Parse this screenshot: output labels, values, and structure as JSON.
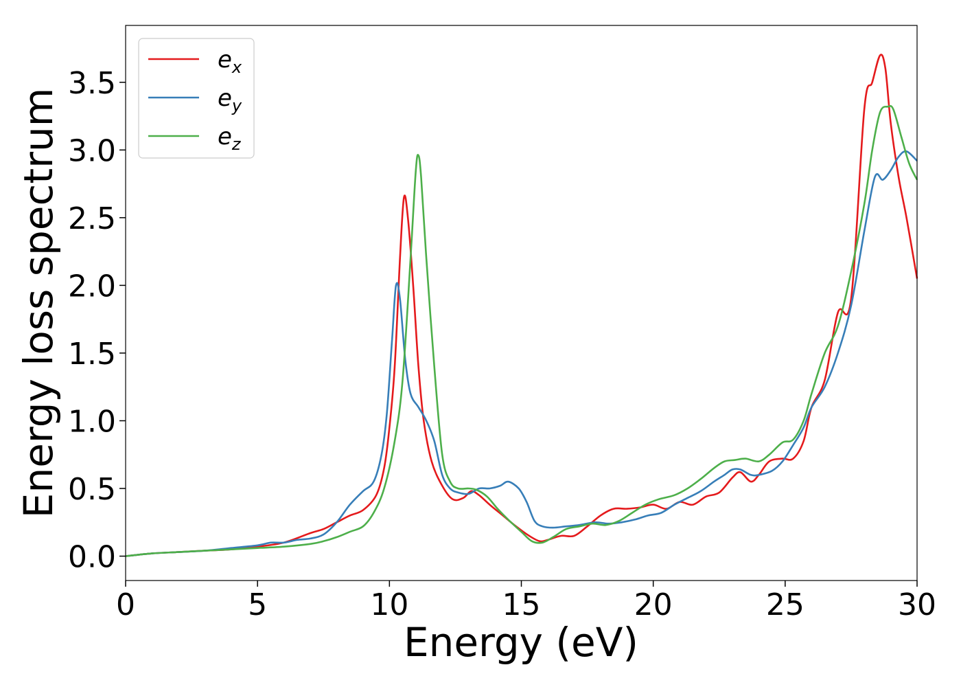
{
  "chart_data": {
    "type": "line",
    "title": "",
    "xlabel": "Energy (eV)",
    "ylabel": "Energy loss spectrum",
    "xlim": [
      0,
      30
    ],
    "ylim": [
      -0.18,
      3.92
    ],
    "xticks": [
      "0",
      "5",
      "10",
      "15",
      "20",
      "25",
      "30"
    ],
    "yticks": [
      "0.0",
      "0.5",
      "1.0",
      "1.5",
      "2.0",
      "2.5",
      "3.0",
      "3.5"
    ],
    "grid": false,
    "legend_position": "top-left",
    "series": [
      {
        "name": "e",
        "subscript": "x",
        "color": "#e41a1c",
        "x": [
          0,
          1,
          2,
          3,
          4,
          5,
          6,
          7,
          7.5,
          8,
          8.5,
          9,
          9.5,
          9.8,
          10,
          10.2,
          10.4,
          10.55,
          10.7,
          10.9,
          11.1,
          11.3,
          11.6,
          12,
          12.4,
          12.8,
          13.1,
          13.4,
          13.8,
          14.3,
          14.8,
          15.3,
          15.7,
          16,
          16.5,
          17,
          17.5,
          18,
          18.5,
          19,
          19.5,
          20,
          20.5,
          21,
          21.5,
          22,
          22.5,
          23,
          23.3,
          23.7,
          24,
          24.4,
          24.9,
          25.3,
          25.7,
          26,
          26.5,
          27,
          27.5,
          28,
          28.3,
          28.6,
          28.8,
          29,
          29.3,
          29.6,
          30
        ],
        "y": [
          0.0,
          0.02,
          0.03,
          0.04,
          0.05,
          0.07,
          0.1,
          0.17,
          0.2,
          0.25,
          0.3,
          0.34,
          0.45,
          0.65,
          0.95,
          1.4,
          2.2,
          2.65,
          2.5,
          2.0,
          1.4,
          1.0,
          0.7,
          0.52,
          0.42,
          0.43,
          0.48,
          0.45,
          0.38,
          0.3,
          0.22,
          0.15,
          0.11,
          0.12,
          0.15,
          0.15,
          0.22,
          0.3,
          0.35,
          0.35,
          0.36,
          0.38,
          0.35,
          0.4,
          0.38,
          0.44,
          0.47,
          0.58,
          0.62,
          0.55,
          0.6,
          0.7,
          0.72,
          0.72,
          0.85,
          1.1,
          1.3,
          1.8,
          1.9,
          3.3,
          3.5,
          3.7,
          3.6,
          3.2,
          2.8,
          2.5,
          2.05
        ]
      },
      {
        "name": "e",
        "subscript": "y",
        "color": "#377eb8",
        "x": [
          0,
          1,
          2,
          3,
          4,
          5,
          5.5,
          6,
          6.5,
          7,
          7.5,
          8,
          8.5,
          9,
          9.4,
          9.7,
          9.9,
          10.1,
          10.25,
          10.4,
          10.6,
          10.8,
          11.1,
          11.4,
          11.7,
          12,
          12.3,
          12.6,
          13,
          13.4,
          13.8,
          14.2,
          14.5,
          14.9,
          15.2,
          15.5,
          15.8,
          16.2,
          16.7,
          17.2,
          17.8,
          18.3,
          18.8,
          19.3,
          19.8,
          20.3,
          20.8,
          21.3,
          21.8,
          22.3,
          22.7,
          23,
          23.3,
          23.7,
          24,
          24.5,
          24.9,
          25.3,
          25.7,
          26,
          26.5,
          27,
          27.5,
          28,
          28.4,
          28.7,
          29,
          29.3,
          29.6,
          30
        ],
        "y": [
          0.0,
          0.02,
          0.03,
          0.04,
          0.06,
          0.08,
          0.1,
          0.1,
          0.12,
          0.13,
          0.16,
          0.25,
          0.38,
          0.48,
          0.55,
          0.75,
          1.05,
          1.6,
          2.0,
          1.9,
          1.45,
          1.2,
          1.1,
          1.0,
          0.85,
          0.6,
          0.5,
          0.47,
          0.46,
          0.5,
          0.5,
          0.52,
          0.55,
          0.5,
          0.4,
          0.26,
          0.22,
          0.21,
          0.22,
          0.23,
          0.25,
          0.24,
          0.25,
          0.27,
          0.3,
          0.32,
          0.38,
          0.43,
          0.48,
          0.55,
          0.6,
          0.64,
          0.64,
          0.6,
          0.6,
          0.63,
          0.7,
          0.82,
          0.95,
          1.1,
          1.25,
          1.5,
          1.85,
          2.4,
          2.8,
          2.78,
          2.85,
          2.95,
          2.99,
          2.92
        ]
      },
      {
        "name": "e",
        "subscript": "z",
        "color": "#4daf4a",
        "x": [
          0,
          1,
          2,
          3,
          4,
          5,
          6,
          7,
          7.5,
          8,
          8.5,
          9,
          9.4,
          9.8,
          10.2,
          10.5,
          10.8,
          11,
          11.1,
          11.2,
          11.4,
          11.7,
          12,
          12.3,
          12.6,
          13,
          13.3,
          13.7,
          14.1,
          14.5,
          15,
          15.4,
          15.8,
          16.2,
          16.7,
          17.2,
          17.7,
          18.2,
          18.7,
          19.2,
          19.7,
          20.2,
          20.8,
          21.3,
          21.8,
          22.3,
          22.7,
          23.1,
          23.5,
          24,
          24.4,
          24.9,
          25.3,
          25.7,
          26,
          26.5,
          27,
          27.5,
          28,
          28.3,
          28.6,
          28.9,
          29.1,
          29.4,
          29.7,
          30
        ],
        "y": [
          0.0,
          0.02,
          0.03,
          0.04,
          0.05,
          0.06,
          0.07,
          0.09,
          0.11,
          0.14,
          0.18,
          0.22,
          0.32,
          0.5,
          0.85,
          1.3,
          2.2,
          2.85,
          2.96,
          2.8,
          2.2,
          1.4,
          0.75,
          0.55,
          0.5,
          0.5,
          0.49,
          0.44,
          0.35,
          0.27,
          0.18,
          0.11,
          0.1,
          0.14,
          0.2,
          0.22,
          0.24,
          0.23,
          0.26,
          0.32,
          0.38,
          0.42,
          0.45,
          0.5,
          0.57,
          0.65,
          0.7,
          0.71,
          0.72,
          0.7,
          0.75,
          0.84,
          0.86,
          1.0,
          1.2,
          1.5,
          1.7,
          2.1,
          2.6,
          3.0,
          3.28,
          3.32,
          3.3,
          3.1,
          2.9,
          2.78
        ]
      }
    ]
  }
}
